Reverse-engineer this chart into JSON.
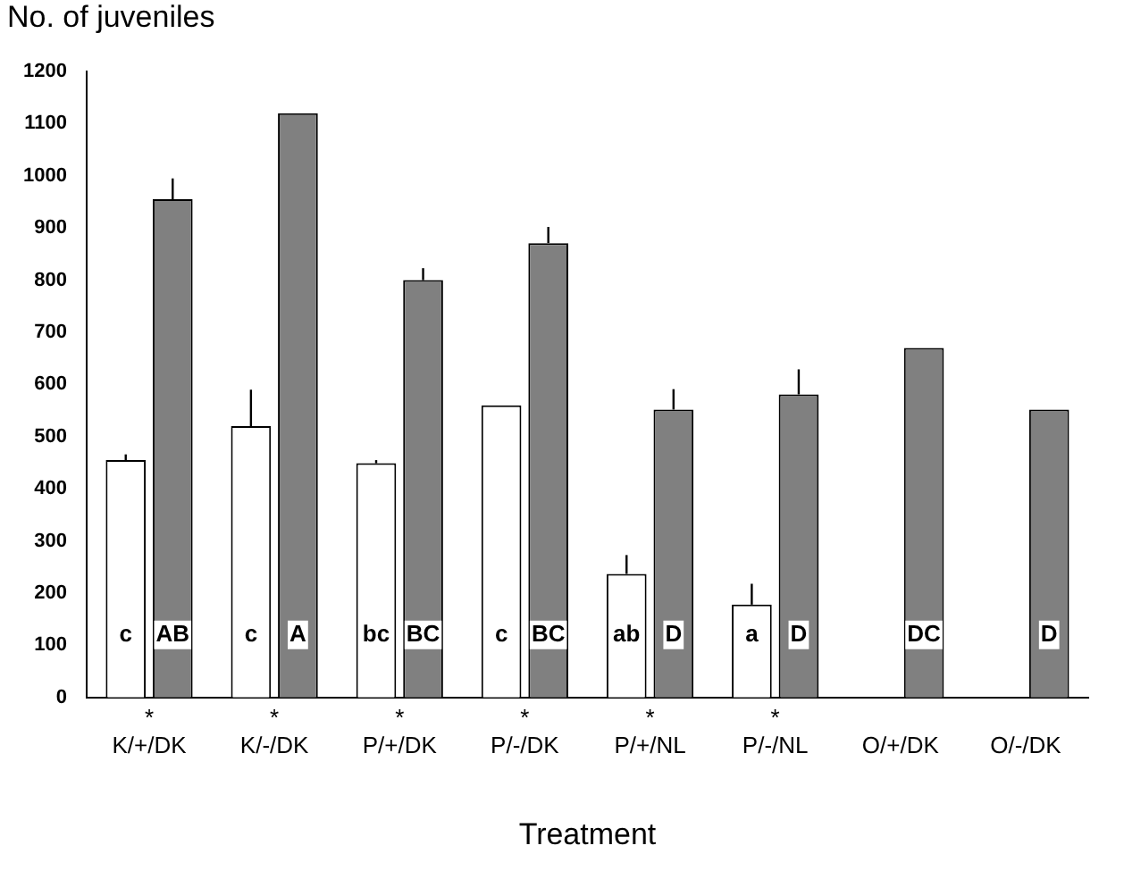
{
  "chart_data": {
    "type": "bar",
    "ylabel": "No. of juveniles",
    "xlabel": "Treatment",
    "categories": [
      "*\nK/+/DK",
      "*\nK/-/DK",
      "*\nP/+/DK",
      "*\nP/-/DK",
      "*\nP/+/NL",
      "*\nP/-/NL",
      "O/+/DK",
      "O/-/DK"
    ],
    "series": [
      {
        "color": "#ffffff",
        "values": [
          455,
          520,
          449,
          560,
          237,
          178,
          null,
          null
        ],
        "errors": [
          [
            455,
            466
          ],
          [
            520,
            590
          ],
          [
            449,
            455
          ],
          null,
          [
            237,
            273
          ],
          [
            178,
            218
          ],
          null,
          null
        ],
        "value_labels": [
          "c",
          "c",
          "bc",
          "c",
          "ab",
          "a",
          null,
          null
        ]
      },
      {
        "color": "#808080",
        "values": [
          955,
          1120,
          800,
          871,
          552,
          581,
          670,
          552
        ],
        "errors": [
          [
            955,
            995
          ],
          null,
          [
            800,
            823
          ],
          [
            871,
            902
          ],
          [
            552,
            591
          ],
          [
            581,
            629
          ],
          null,
          null
        ],
        "value_labels": [
          "AB",
          "A",
          "BC",
          "BC",
          "D",
          "D",
          "DC",
          "D"
        ]
      }
    ],
    "ylim": [
      0,
      1200
    ],
    "yticks": [
      0,
      100,
      200,
      300,
      400,
      500,
      600,
      700,
      800,
      900,
      1000,
      1100,
      1200
    ],
    "grid": false,
    "legend": false
  }
}
